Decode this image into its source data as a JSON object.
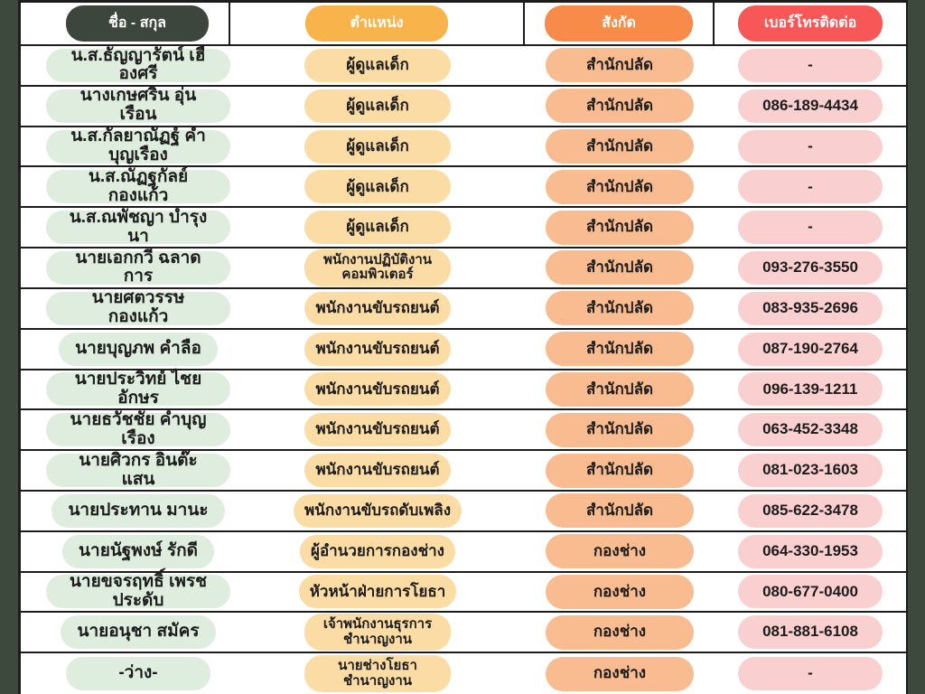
{
  "theme": {
    "bg": "#3E493E",
    "line": "#1C1C1C",
    "text": "#1C1C1C",
    "header_text": "#FFFFFF",
    "header_name": "#3C463C",
    "header_position": "#F8B34A",
    "header_department": "#F88B49",
    "header_phone": "#F75756",
    "pill_name": "#DEEDDE",
    "pill_position": "#FBDCA4",
    "pill_department": "#F9BC90",
    "pill_phone": "#FACFCF"
  },
  "table": {
    "columns": [
      {
        "key": "name",
        "label": "ชื่อ - สกุล"
      },
      {
        "key": "position",
        "label": "ตำแหน่ง"
      },
      {
        "key": "department",
        "label": "สังกัด"
      },
      {
        "key": "phone",
        "label": "เบอร์โทรติดต่อ"
      }
    ],
    "rows": [
      {
        "name": "น.ส.ธัญญารัตน์ เฮืองศรี",
        "position": "ผู้ดูแลเด็ก",
        "department": "สำนักปลัด",
        "phone": "-"
      },
      {
        "name": "นางเกษศริน อุ่นเรือน",
        "position": "ผู้ดูแลเด็ก",
        "department": "สำนักปลัด",
        "phone": "086-189-4434"
      },
      {
        "name": "น.ส.กัลยาณัฏฐ์ คำบุญเรือง",
        "position": "ผู้ดูแลเด็ก",
        "department": "สำนักปลัด",
        "phone": "-"
      },
      {
        "name": "น.ส.ณัฏฐกัลย์ กองแก้ว",
        "position": "ผู้ดูแลเด็ก",
        "department": "สำนักปลัด",
        "phone": "-"
      },
      {
        "name": "น.ส.ณพัชญา บำรุงนา",
        "position": "ผู้ดูแลเด็ก",
        "department": "สำนักปลัด",
        "phone": "-"
      },
      {
        "name": "นายเอกกวี ฉลาดการ",
        "position": "พนักงานปฏิบัติงาน\nคอมพิวเตอร์",
        "department": "สำนักปลัด",
        "phone": "093-276-3550"
      },
      {
        "name": "นายศตวรรษ กองแก้ว",
        "position": "พนักงานขับรถยนต์",
        "department": "สำนักปลัด",
        "phone": "083-935-2696"
      },
      {
        "name": "นายบุญภพ คำลือ",
        "position": "พนักงานขับรถยนต์",
        "department": "สำนักปลัด",
        "phone": "087-190-2764"
      },
      {
        "name": "นายประวิทย์ ไชยอักษร",
        "position": "พนักงานขับรถยนต์",
        "department": "สำนักปลัด",
        "phone": "096-139-1211"
      },
      {
        "name": "นายธวัชชัย คำบุญเรือง",
        "position": "พนักงานขับรถยนต์",
        "department": "สำนักปลัด",
        "phone": "063-452-3348"
      },
      {
        "name": "นายศิวกร อินต๊ะแสน",
        "position": "พนักงานขับรถยนต์",
        "department": "สำนักปลัด",
        "phone": "081-023-1603"
      },
      {
        "name": "นายประทาน มานะ",
        "position": "พนักงานขับรถดับเพลิง",
        "department": "สำนักปลัด",
        "phone": "085-622-3478"
      },
      {
        "name": "นายนัฐพงษ์ รักดี",
        "position": "ผู้อำนวยการกองช่าง",
        "department": "กองช่าง",
        "phone": "064-330-1953"
      },
      {
        "name": "นายขจรฤทธิ์ เพรชประดับ",
        "position": "หัวหน้าฝ่ายการโยธา",
        "department": "กองช่าง",
        "phone": "080-677-0400"
      },
      {
        "name": "นายอนุชา สมัคร",
        "position": "เจ้าพนักงานธุรการ\nชำนาญงาน",
        "department": "กองช่าง",
        "phone": "081-881-6108"
      },
      {
        "name": "-ว่าง-",
        "position": "นายช่างโยธา\nชำนาญงาน",
        "department": "กองช่าง",
        "phone": "-"
      }
    ]
  }
}
